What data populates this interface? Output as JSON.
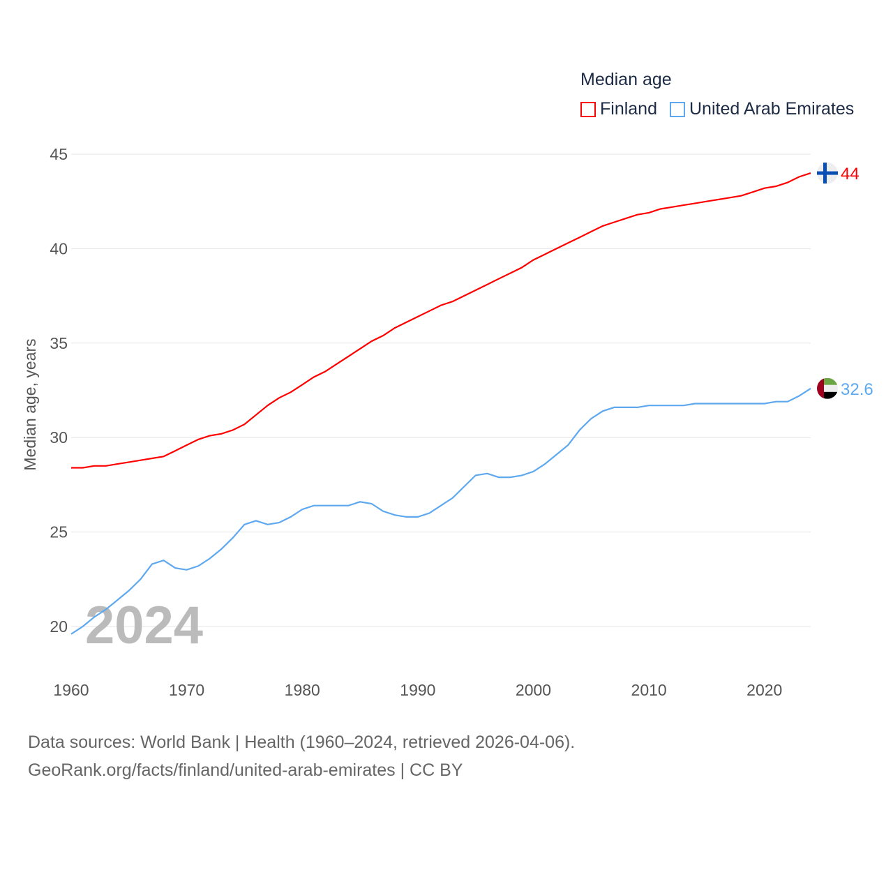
{
  "chart_data": {
    "type": "line",
    "title": "Median age",
    "ylabel": "Median age, years",
    "xlabel": "",
    "ylim": [
      20,
      45
    ],
    "xlim": [
      1960,
      2024
    ],
    "yticks": [
      20,
      25,
      30,
      35,
      40,
      45
    ],
    "xticks": [
      1960,
      1970,
      1980,
      1990,
      2000,
      2010,
      2020
    ],
    "grid": true,
    "legend_position": "top-right",
    "year_label": "2024",
    "x": [
      1960,
      1961,
      1962,
      1963,
      1964,
      1965,
      1966,
      1967,
      1968,
      1969,
      1970,
      1971,
      1972,
      1973,
      1974,
      1975,
      1976,
      1977,
      1978,
      1979,
      1980,
      1981,
      1982,
      1983,
      1984,
      1985,
      1986,
      1987,
      1988,
      1989,
      1990,
      1991,
      1992,
      1993,
      1994,
      1995,
      1996,
      1997,
      1998,
      1999,
      2000,
      2001,
      2002,
      2003,
      2004,
      2005,
      2006,
      2007,
      2008,
      2009,
      2010,
      2011,
      2012,
      2013,
      2014,
      2015,
      2016,
      2017,
      2018,
      2019,
      2020,
      2021,
      2022,
      2023,
      2024
    ],
    "series": [
      {
        "name": "Finland",
        "color": "#ff0000",
        "end_label": "44",
        "values": [
          28.4,
          28.4,
          28.5,
          28.5,
          28.6,
          28.7,
          28.8,
          28.9,
          29.0,
          29.3,
          29.6,
          29.9,
          30.1,
          30.2,
          30.4,
          30.7,
          31.2,
          31.7,
          32.1,
          32.4,
          32.8,
          33.2,
          33.5,
          33.9,
          34.3,
          34.7,
          35.1,
          35.4,
          35.8,
          36.1,
          36.4,
          36.7,
          37.0,
          37.2,
          37.5,
          37.8,
          38.1,
          38.4,
          38.7,
          39.0,
          39.4,
          39.7,
          40.0,
          40.3,
          40.6,
          40.9,
          41.2,
          41.4,
          41.6,
          41.8,
          41.9,
          42.1,
          42.2,
          42.3,
          42.4,
          42.5,
          42.6,
          42.7,
          42.8,
          43.0,
          43.2,
          43.3,
          43.5,
          43.8,
          44.0
        ]
      },
      {
        "name": "United Arab Emirates",
        "color": "#5ea8ef",
        "end_label": "32.6",
        "values": [
          19.6,
          20.0,
          20.5,
          20.9,
          21.4,
          21.9,
          22.5,
          23.3,
          23.5,
          23.1,
          23.0,
          23.2,
          23.6,
          24.1,
          24.7,
          25.4,
          25.6,
          25.4,
          25.5,
          25.8,
          26.2,
          26.4,
          26.4,
          26.4,
          26.4,
          26.6,
          26.5,
          26.1,
          25.9,
          25.8,
          25.8,
          26.0,
          26.4,
          26.8,
          27.4,
          28.0,
          28.1,
          27.9,
          27.9,
          28.0,
          28.2,
          28.6,
          29.1,
          29.6,
          30.4,
          31.0,
          31.4,
          31.6,
          31.6,
          31.6,
          31.7,
          31.7,
          31.7,
          31.7,
          31.8,
          31.8,
          31.8,
          31.8,
          31.8,
          31.8,
          31.8,
          31.9,
          31.9,
          32.2,
          32.6
        ]
      }
    ]
  },
  "footer": {
    "line1": "Data sources: World Bank | Health (1960–2024, retrieved 2026-04-06).",
    "line2": "GeoRank.org/facts/finland/united-arab-emirates | CC BY"
  }
}
